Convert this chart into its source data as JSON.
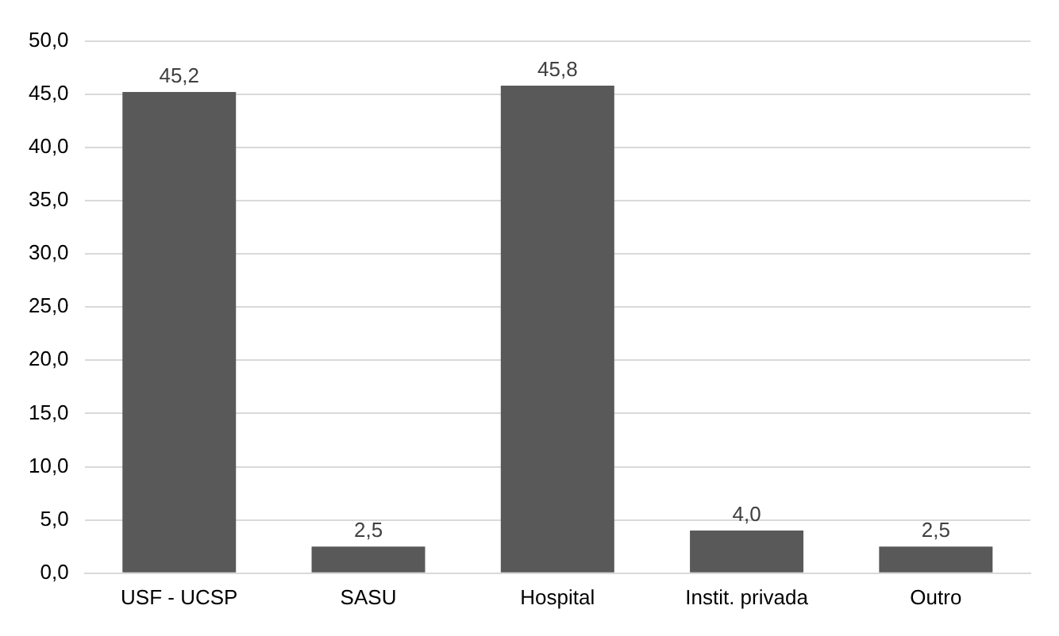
{
  "chart_data": {
    "type": "bar",
    "categories": [
      "USF - UCSP",
      "SASU",
      "Hospital",
      "Instit. privada",
      "Outro"
    ],
    "values": [
      45.2,
      2.5,
      45.8,
      4.0,
      2.5
    ],
    "value_labels": [
      "45,2",
      "2,5",
      "45,8",
      "4,0",
      "2,5"
    ],
    "color": "#595959",
    "ylim": [
      0,
      50
    ],
    "yticks": [
      {
        "value": 0,
        "label": "0,0"
      },
      {
        "value": 5,
        "label": "5,0"
      },
      {
        "value": 10,
        "label": "10,0"
      },
      {
        "value": 15,
        "label": "15,0"
      },
      {
        "value": 20,
        "label": "20,0"
      },
      {
        "value": 25,
        "label": "25,0"
      },
      {
        "value": 30,
        "label": "30,0"
      },
      {
        "value": 35,
        "label": "35,0"
      },
      {
        "value": 40,
        "label": "40,0"
      },
      {
        "value": 45,
        "label": "45,0"
      },
      {
        "value": 50,
        "label": "50,0"
      }
    ],
    "grid": "y"
  }
}
